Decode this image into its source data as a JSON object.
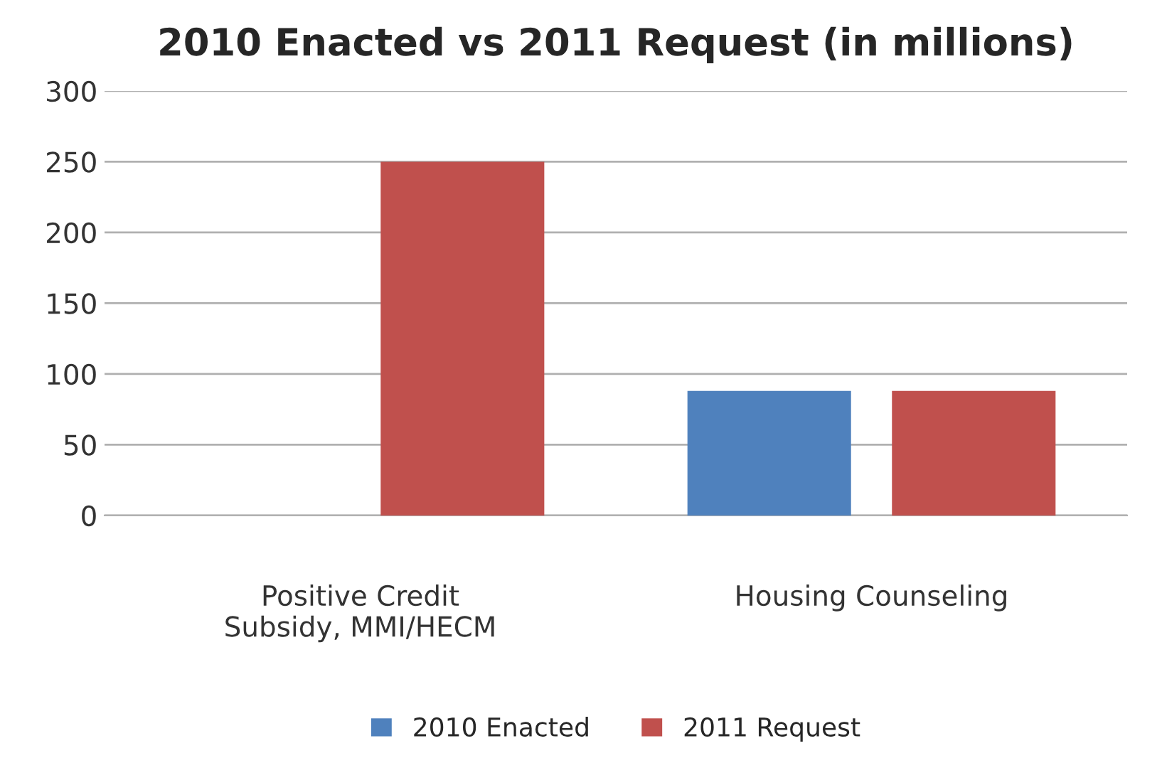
{
  "chart_data": {
    "type": "bar",
    "title": "2010 Enacted vs 2011 Request (in millions)",
    "categories": [
      "Positive Credit\nSubsidy, MMI/HECM",
      "Housing Counseling"
    ],
    "series": [
      {
        "name": "2010 Enacted",
        "color": "#4f81bd",
        "values": [
          null,
          88
        ]
      },
      {
        "name": "2011 Request",
        "color": "#c0504d",
        "values": [
          250,
          88
        ]
      }
    ],
    "ylim": [
      0,
      300
    ],
    "yticks": [
      0,
      50,
      100,
      150,
      200,
      250,
      300
    ],
    "grid": "y",
    "legend": "bottom"
  }
}
